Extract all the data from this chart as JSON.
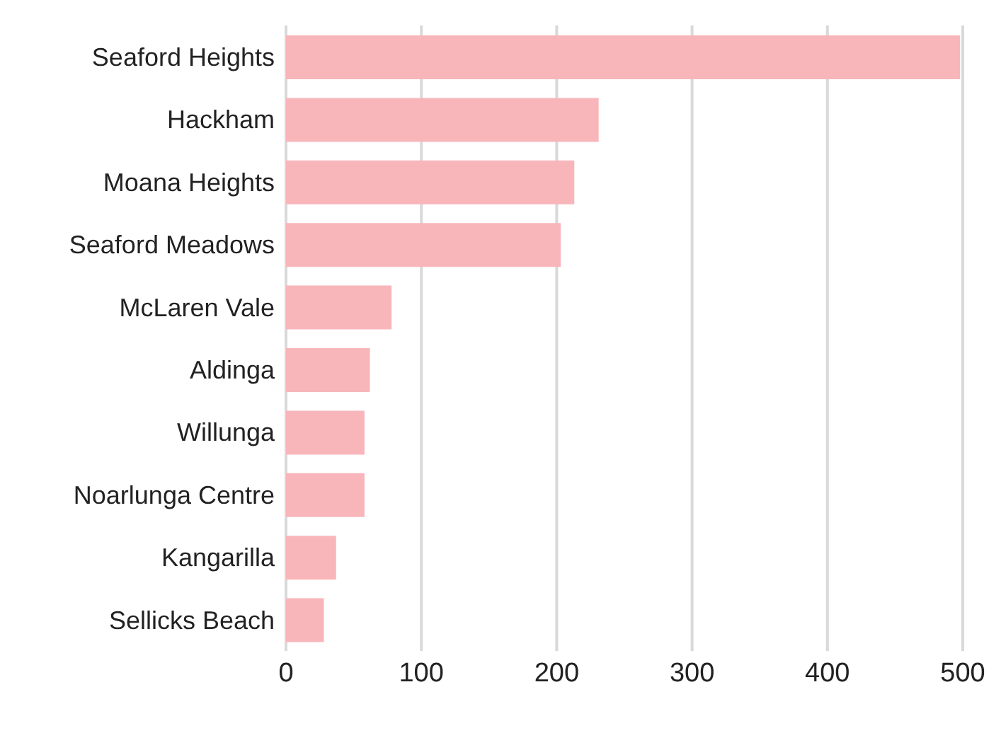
{
  "chart_data": {
    "type": "bar",
    "orientation": "horizontal",
    "categories": [
      "Seaford Heights",
      "Hackham",
      "Moana Heights",
      "Seaford Meadows",
      "McLaren Vale",
      "Aldinga",
      "Willunga",
      "Noarlunga Centre",
      "Kangarilla",
      "Sellicks Beach"
    ],
    "values": [
      498,
      231,
      213,
      203,
      78,
      62,
      58,
      58,
      37,
      28
    ],
    "color": "#f8b6bb",
    "xlim": [
      0,
      500
    ],
    "xticks": [
      0,
      100,
      200,
      300,
      400,
      500
    ],
    "grid": "x"
  }
}
